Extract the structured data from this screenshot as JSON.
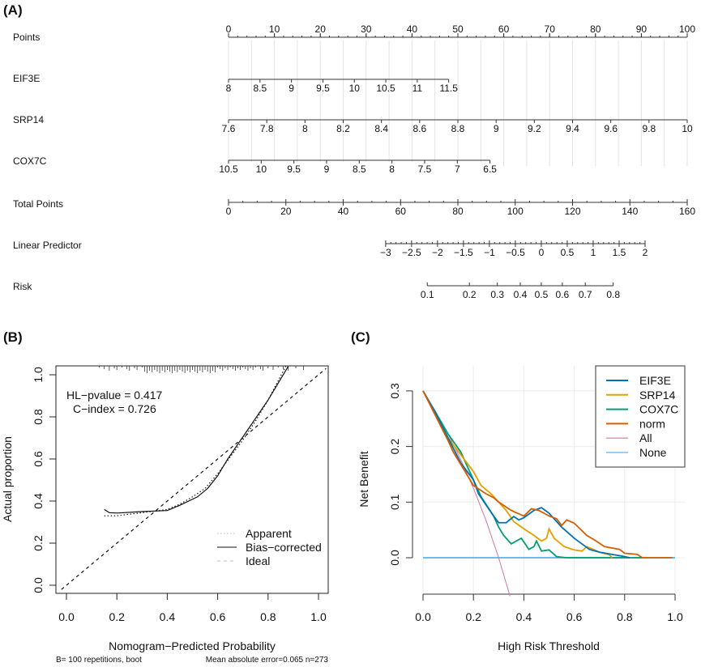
{
  "chart_data": [
    {
      "type": "nomogram",
      "panel_label": "(A)",
      "rows": [
        {
          "name": "Points",
          "ticks": [
            "0",
            "10",
            "20",
            "30",
            "40",
            "50",
            "60",
            "70",
            "80",
            "90",
            "100"
          ],
          "values": [
            0,
            10,
            20,
            30,
            40,
            50,
            60,
            70,
            80,
            90,
            100
          ],
          "points_range": [
            0,
            100
          ]
        },
        {
          "name": "EIF3E",
          "ticks": [
            "8",
            "8.5",
            "9",
            "9.5",
            "10",
            "10.5",
            "11",
            "11.5"
          ],
          "values": [
            8,
            8.5,
            9,
            9.5,
            10,
            10.5,
            11,
            11.5
          ],
          "points_range": [
            0,
            48
          ]
        },
        {
          "name": "SRP14",
          "ticks": [
            "7.6",
            "7.8",
            "8",
            "8.2",
            "8.4",
            "8.6",
            "8.8",
            "9",
            "9.2",
            "9.4",
            "9.6",
            "9.8",
            "10"
          ],
          "values": [
            7.6,
            7.8,
            8,
            8.2,
            8.4,
            8.6,
            8.8,
            9,
            9.2,
            9.4,
            9.6,
            9.8,
            10
          ],
          "points_range": [
            0,
            100
          ]
        },
        {
          "name": "COX7C",
          "ticks": [
            "10.5",
            "10",
            "9.5",
            "9",
            "8.5",
            "8",
            "7.5",
            "7",
            "6.5"
          ],
          "values": [
            10.5,
            10,
            9.5,
            9,
            8.5,
            8,
            7.5,
            7,
            6.5
          ],
          "points_range": [
            0,
            57
          ]
        },
        {
          "name": "Total Points",
          "ticks": [
            "0",
            "20",
            "40",
            "60",
            "80",
            "100",
            "120",
            "140",
            "160"
          ],
          "values": [
            0,
            20,
            40,
            60,
            80,
            100,
            120,
            140,
            160
          ],
          "total_range": [
            0,
            160
          ]
        },
        {
          "name": "Linear Predictor",
          "ticks": [
            "−3",
            "−2.5",
            "−2",
            "−1.5",
            "−1",
            "−0.5",
            "0",
            "0.5",
            "1",
            "1.5",
            "2"
          ],
          "values": [
            -3,
            -2.5,
            -2,
            -1.5,
            -1,
            -0.5,
            0,
            0.5,
            1,
            1.5,
            2
          ],
          "total_range": [
            54.8,
            145.3
          ]
        },
        {
          "name": "Risk",
          "ticks": [
            "0.1",
            "0.2",
            "0.3",
            "0.4",
            "0.5",
            "0.6",
            "0.7",
            "0.8"
          ],
          "values": [
            0.1,
            0.2,
            0.3,
            0.4,
            0.5,
            0.6,
            0.7,
            0.8
          ]
        }
      ]
    },
    {
      "type": "line",
      "panel_label": "(B)",
      "xlabel": "Nomogram−Predicted Probability",
      "ylabel": "Actual proportion",
      "xlim": [
        -0.03,
        1.03
      ],
      "ylim": [
        -0.03,
        1.05
      ],
      "xticks": [
        "0.0",
        "0.2",
        "0.4",
        "0.6",
        "0.8",
        "1.0"
      ],
      "yticks": [
        "0.0",
        "0.2",
        "0.4",
        "0.6",
        "0.8",
        "1.0"
      ],
      "annotations": [
        "HL−pvalue = 0.417",
        "C−index = 0.726"
      ],
      "footer_left": "B= 100 repetitions, boot",
      "footer_right": "Mean absolute error=0.065 n=273",
      "legend_position": "bottom-right",
      "series": [
        {
          "name": "Apparent",
          "style": "dotted",
          "x": [
            0.15,
            0.2,
            0.3,
            0.4,
            0.45,
            0.5,
            0.55,
            0.6,
            0.65,
            0.7,
            0.75,
            0.8,
            0.87
          ],
          "y": [
            0.33,
            0.33,
            0.345,
            0.36,
            0.385,
            0.42,
            0.46,
            0.53,
            0.61,
            0.69,
            0.78,
            0.88,
            1.04
          ]
        },
        {
          "name": "Bias−corrected",
          "style": "solid",
          "x": [
            0.15,
            0.17,
            0.2,
            0.3,
            0.4,
            0.45,
            0.52,
            0.56,
            0.6,
            0.64,
            0.68,
            0.72,
            0.8,
            0.88
          ],
          "y": [
            0.36,
            0.345,
            0.343,
            0.35,
            0.355,
            0.38,
            0.42,
            0.46,
            0.52,
            0.6,
            0.67,
            0.74,
            0.88,
            1.04
          ]
        },
        {
          "name": "Ideal",
          "style": "dashed",
          "x": [
            -0.02,
            1.03
          ],
          "y": [
            -0.02,
            1.03
          ]
        }
      ],
      "rug": [
        0.13,
        0.15,
        0.17,
        0.19,
        0.2,
        0.22,
        0.24,
        0.25,
        0.27,
        0.28,
        0.3,
        0.31,
        0.32,
        0.33,
        0.34,
        0.35,
        0.36,
        0.37,
        0.38,
        0.39,
        0.4,
        0.41,
        0.42,
        0.43,
        0.44,
        0.45,
        0.46,
        0.47,
        0.48,
        0.49,
        0.5,
        0.51,
        0.52,
        0.53,
        0.54,
        0.55,
        0.56,
        0.57,
        0.58,
        0.59,
        0.6,
        0.61,
        0.62,
        0.63,
        0.64,
        0.65,
        0.66,
        0.67,
        0.68,
        0.69,
        0.7,
        0.71,
        0.72,
        0.73,
        0.74,
        0.75,
        0.77,
        0.78,
        0.8,
        0.82,
        0.84,
        0.86,
        0.88,
        0.91,
        0.94
      ]
    },
    {
      "type": "line",
      "panel_label": "(C)",
      "xlabel": "High Risk Threshold",
      "ylabel": "Net Benefit",
      "xlim": [
        0,
        1
      ],
      "ylim": [
        -0.065,
        0.3
      ],
      "xticks": [
        "0.0",
        "0.2",
        "0.4",
        "0.6",
        "0.8",
        "1.0"
      ],
      "yticks": [
        "0.0",
        "0.1",
        "0.2",
        "0.3"
      ],
      "grid": true,
      "legend_position": "top-right",
      "series": [
        {
          "name": "EIF3E",
          "color": "#0072B2",
          "x": [
            0,
            0.05,
            0.1,
            0.15,
            0.2,
            0.22,
            0.25,
            0.28,
            0.3,
            0.33,
            0.36,
            0.38,
            0.4,
            0.44,
            0.47,
            0.5,
            0.55,
            0.6,
            0.63,
            0.66,
            0.7,
            0.75,
            0.8,
            0.82
          ],
          "y": [
            0.3,
            0.26,
            0.215,
            0.17,
            0.14,
            0.115,
            0.095,
            0.075,
            0.063,
            0.063,
            0.074,
            0.068,
            0.072,
            0.085,
            0.09,
            0.08,
            0.055,
            0.035,
            0.025,
            0.015,
            0.01,
            0.006,
            0.002,
            0
          ]
        },
        {
          "name": "SRP14",
          "color": "#E69F00",
          "x": [
            0,
            0.1,
            0.15,
            0.2,
            0.23,
            0.27,
            0.3,
            0.33,
            0.36,
            0.4,
            0.44,
            0.47,
            0.49,
            0.5,
            0.52,
            0.56,
            0.6,
            0.63,
            0.65,
            0.7,
            0.74,
            0.75
          ],
          "y": [
            0.3,
            0.215,
            0.185,
            0.155,
            0.13,
            0.115,
            0.1,
            0.085,
            0.065,
            0.052,
            0.04,
            0.03,
            0.035,
            0.052,
            0.035,
            0.02,
            0.014,
            0.012,
            0.02,
            0.01,
            0.005,
            0
          ]
        },
        {
          "name": "COX7C",
          "color": "#009E73",
          "x": [
            0,
            0.1,
            0.15,
            0.2,
            0.23,
            0.28,
            0.3,
            0.32,
            0.35,
            0.39,
            0.42,
            0.44,
            0.45,
            0.47,
            0.5,
            0.53,
            0.57,
            0.87
          ],
          "y": [
            0.3,
            0.222,
            0.19,
            0.14,
            0.11,
            0.075,
            0.055,
            0.04,
            0.025,
            0.035,
            0.015,
            0.02,
            0.03,
            0.012,
            0.014,
            0.002,
            0,
            0
          ]
        },
        {
          "name": "norm",
          "color": "#D55E00",
          "x": [
            0,
            0.1,
            0.12,
            0.16,
            0.2,
            0.25,
            0.28,
            0.3,
            0.35,
            0.4,
            0.43,
            0.46,
            0.5,
            0.53,
            0.55,
            0.57,
            0.6,
            0.65,
            0.68,
            0.72,
            0.78,
            0.8,
            0.85,
            0.87,
            0.99
          ],
          "y": [
            0.3,
            0.21,
            0.19,
            0.16,
            0.13,
            0.115,
            0.108,
            0.1,
            0.085,
            0.075,
            0.088,
            0.085,
            0.075,
            0.07,
            0.058,
            0.068,
            0.062,
            0.04,
            0.032,
            0.02,
            0.015,
            0.008,
            0.006,
            0,
            0
          ]
        },
        {
          "name": "All",
          "color": "#CC79A7",
          "x": [
            0,
            0.05,
            0.1,
            0.15,
            0.2,
            0.25,
            0.3,
            0.345
          ],
          "y": [
            0.3,
            0.263,
            0.222,
            0.176,
            0.125,
            0.067,
            0,
            -0.069
          ]
        },
        {
          "name": "None",
          "color": "#56B4E9",
          "x": [
            0,
            1
          ],
          "y": [
            0,
            0
          ]
        }
      ]
    }
  ]
}
